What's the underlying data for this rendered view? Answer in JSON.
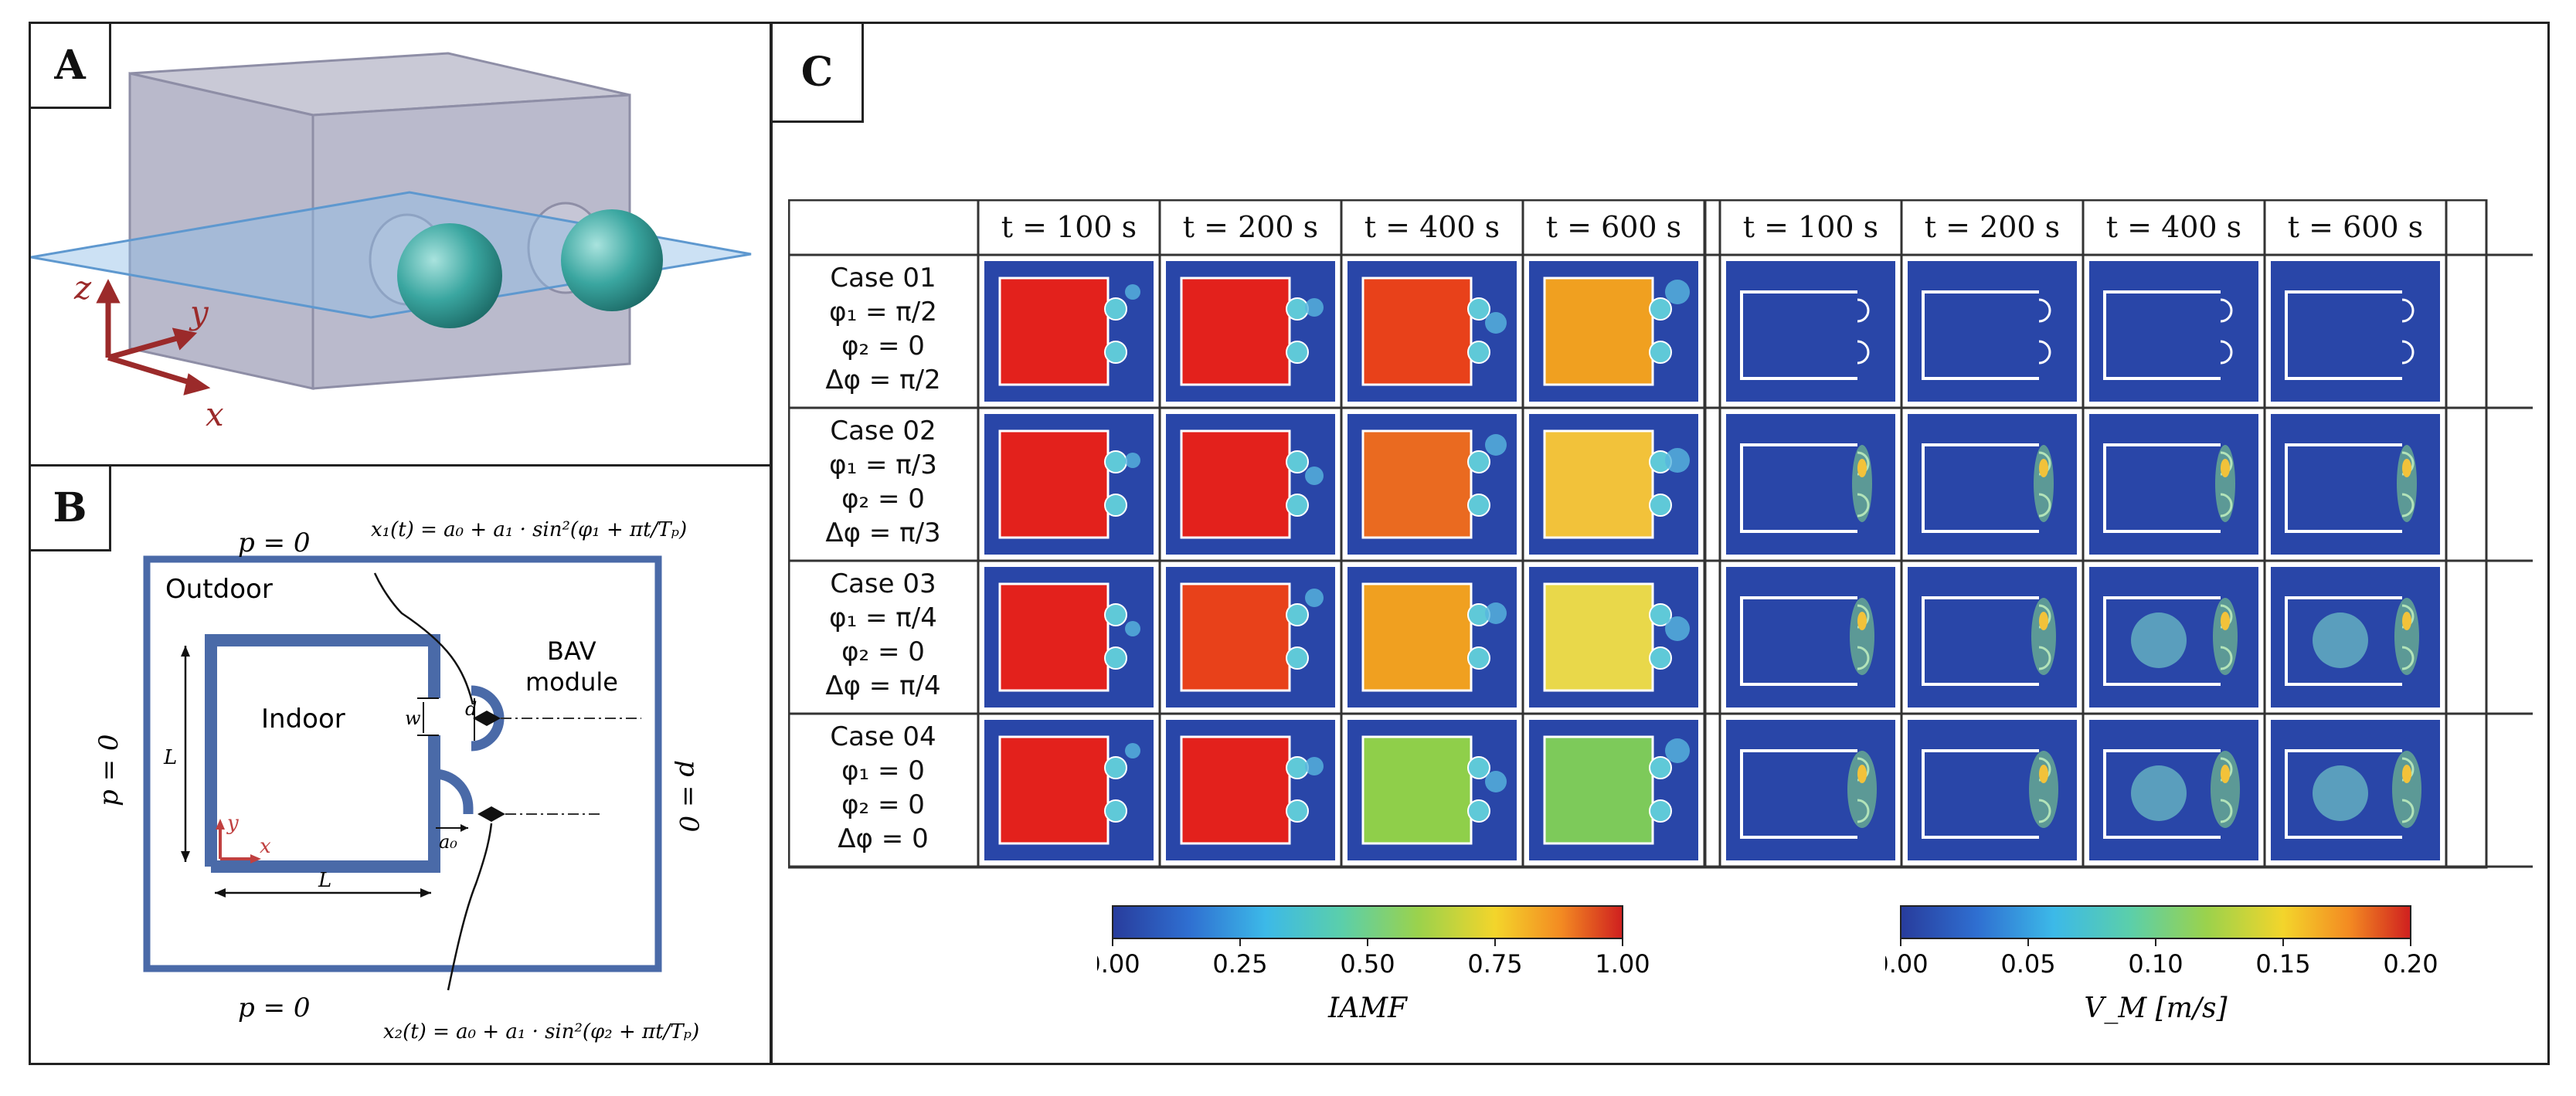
{
  "panels": {
    "a_label": "A",
    "b_label": "B",
    "c_label": "C"
  },
  "panel_a": {
    "axis_z": "z",
    "axis_y": "y",
    "axis_x": "x"
  },
  "panel_b": {
    "p_top": "p = 0",
    "p_bottom": "p = 0",
    "p_left": "p = 0",
    "p_right": "p = 0",
    "outdoor": "Outdoor",
    "indoor": "Indoor",
    "module_line1": "BAV",
    "module_line2": "module",
    "eq1": "x₁(t) = a₀ + a₁ · sin²(φ₁ + πt/Tₚ)",
    "eq2": "x₂(t) = a₀ + a₁ · sin²(φ₂ + πt/Tₚ)",
    "dim_L_vertical": "L",
    "dim_L_horizontal": "L",
    "dim_w": "w",
    "dim_d": "d",
    "dim_a0": "a₀",
    "axis_y": "y",
    "axis_x": "x"
  },
  "panel_c": {
    "time_headers_left": [
      "t = 100 s",
      "t = 200 s",
      "t = 400 s",
      "t = 600 s"
    ],
    "time_headers_right": [
      "t = 100 s",
      "t = 200 s",
      "t = 400 s",
      "t = 600 s"
    ],
    "cases": [
      {
        "name": "Case 01",
        "phi1": "φ₁ = π/2",
        "phi2": "φ₂ = 0",
        "dphi": "Δφ = π/2"
      },
      {
        "name": "Case 02",
        "phi1": "φ₁ = π/3",
        "phi2": "φ₂ = 0",
        "dphi": "Δφ = π/3"
      },
      {
        "name": "Case 03",
        "phi1": "φ₁ = π/4",
        "phi2": "φ₂ = 0",
        "dphi": "Δφ = π/4"
      },
      {
        "name": "Case 04",
        "phi1": "φ₁ = 0",
        "phi2": "φ₂ = 0",
        "dphi": "Δφ = 0"
      }
    ],
    "colorbar_left": {
      "ticks": [
        "0.00",
        "0.25",
        "0.50",
        "0.75",
        "1.00"
      ],
      "label": "IAMF",
      "range": [
        0,
        1
      ]
    },
    "colorbar_right": {
      "ticks": [
        "0.00",
        "0.05",
        "0.10",
        "0.15",
        "0.20"
      ],
      "label": "V_M [m/s]",
      "range": [
        0,
        0.2
      ]
    },
    "colors": {
      "field_bg": "#2946a8",
      "indoor_red": "#e3211c",
      "white_outline": "#ffffff"
    }
  }
}
